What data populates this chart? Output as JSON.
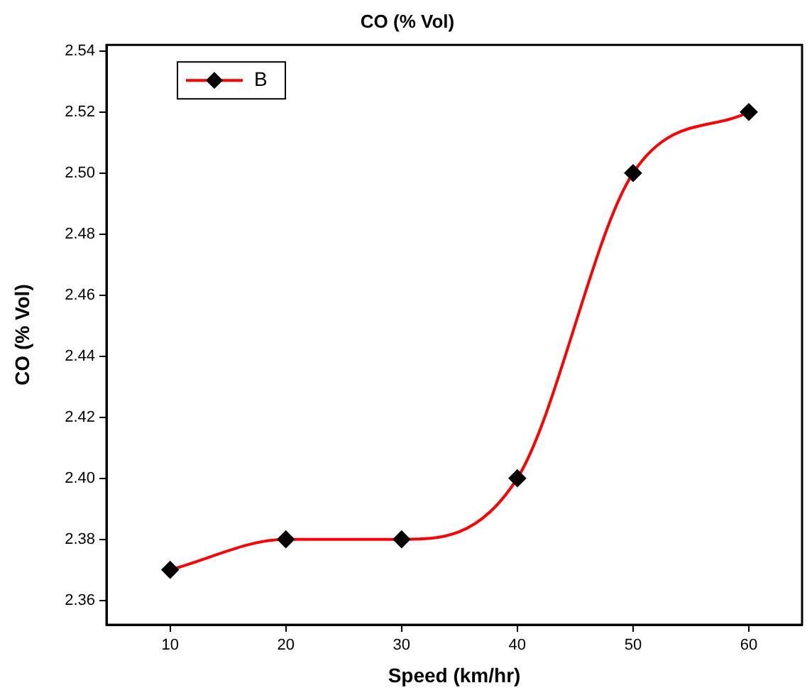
{
  "chart_data": {
    "type": "line",
    "title": "CO (% Vol)",
    "xlabel": "Speed (km/hr)",
    "ylabel": "CO (% Vol)",
    "x": [
      10,
      20,
      30,
      40,
      50,
      60
    ],
    "series": [
      {
        "name": "B",
        "color": "#ff0000",
        "values": [
          2.37,
          2.38,
          2.38,
          2.4,
          2.5,
          2.52
        ]
      }
    ],
    "xlim": [
      4.5,
      64.6
    ],
    "xticks": [
      10,
      20,
      30,
      40,
      50,
      60
    ],
    "ylim": [
      2.352,
      2.542
    ],
    "yticks": [
      2.36,
      2.38,
      {
        "value": 2.4,
        "label": "2.40"
      },
      2.42,
      2.44,
      2.46,
      2.48,
      {
        "value": 2.5,
        "label": "2.50"
      },
      2.52,
      2.54
    ],
    "grid": false,
    "legend": "top left",
    "marker": "diamond",
    "line_style": "solid"
  }
}
